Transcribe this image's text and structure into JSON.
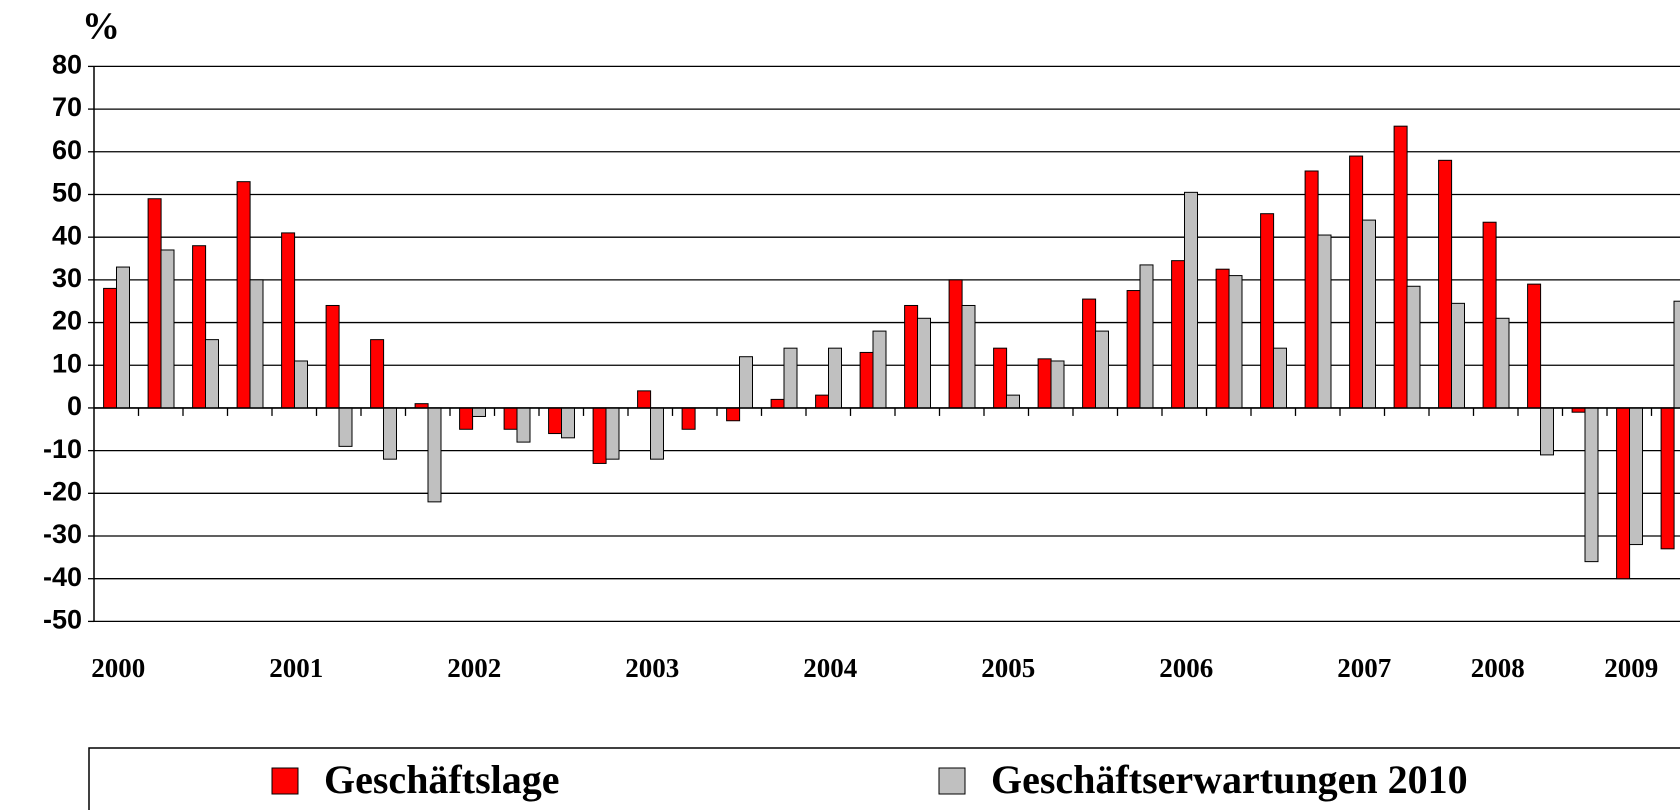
{
  "chart_data": {
    "type": "bar",
    "title": "%",
    "categories": [
      "2000",
      null,
      null,
      null,
      "2001",
      null,
      null,
      null,
      "2002",
      null,
      null,
      null,
      "2003",
      null,
      null,
      null,
      "2004",
      null,
      null,
      null,
      "2005",
      null,
      null,
      null,
      "2006",
      null,
      null,
      null,
      "2007",
      null,
      null,
      "2008",
      null,
      null,
      "2009",
      null
    ],
    "series": [
      {
        "name": "Geschäftslage",
        "color": "#ff0000",
        "values": [
          28,
          49,
          38,
          53,
          41,
          24,
          16,
          1,
          -5,
          -5,
          -6,
          -13,
          4,
          -5,
          -3,
          2,
          3,
          13,
          24,
          30,
          14,
          11.5,
          25.5,
          27.5,
          34.5,
          32.5,
          45.5,
          55.5,
          59,
          66,
          58,
          43.5,
          29,
          -1,
          -40,
          -33
        ]
      },
      {
        "name": "Geschäftserwartungen 2010",
        "color": "#c0c0c0",
        "values": [
          33,
          37,
          16,
          30,
          11,
          -9,
          -12,
          -22,
          -2,
          -8,
          -7,
          -12,
          -12,
          null,
          12,
          14,
          14,
          18,
          21,
          24,
          3,
          11,
          18,
          33.5,
          50.5,
          31,
          14,
          40.5,
          44,
          28.5,
          24.5,
          21,
          -11,
          -36,
          -32,
          25
        ]
      }
    ],
    "ylim": [
      -50,
      80
    ],
    "yticks": [
      -50,
      -40,
      -30,
      -20,
      -10,
      0,
      10,
      20,
      30,
      40,
      50,
      60,
      70,
      80
    ],
    "grid": true
  }
}
